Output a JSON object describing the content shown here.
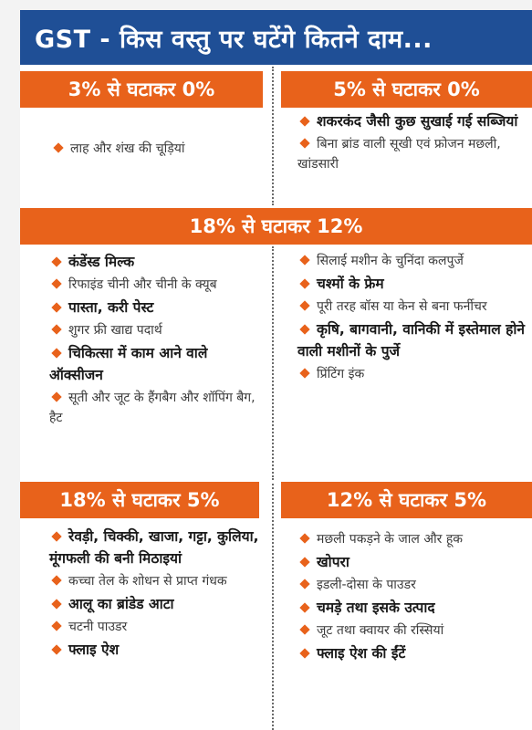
{
  "title": "GST - किस वस्तु पर घटेंगे कितने दाम...",
  "colors": {
    "title_bg": "#1f4f96",
    "band_bg": "#e8621b",
    "bullet": "#e8621b"
  },
  "sections": {
    "s1": {
      "heading": "3% से घटाकर 0%",
      "items": [
        {
          "text": "लाह और शंख की चूड़ियां",
          "bold": false
        }
      ]
    },
    "s2": {
      "heading": "5% से घटाकर 0%",
      "items": [
        {
          "text": "शकरकंद जैसी कुछ सुखाई गई सब्जियां",
          "bold": true
        },
        {
          "text": "बिना ब्रांड वाली सूखी एवं फ्रोजन मछली, खांडसारी",
          "bold": false
        }
      ]
    },
    "s3": {
      "heading": "18% से घटाकर 12%",
      "left_items": [
        {
          "text": "कंडेंस्ड मिल्क",
          "bold": true
        },
        {
          "text": "रिफाइंड चीनी और चीनी के क्यूब",
          "bold": false
        },
        {
          "text": "पास्ता, करी पेस्ट",
          "bold": true
        },
        {
          "text": "शुगर फ्री खाद्य पदार्थ",
          "bold": false
        },
        {
          "text": "चिकित्सा में काम आने वाले ऑक्सीजन",
          "bold": true
        },
        {
          "text": "सूती और जूट के हैंगबैग और शॉपिंग बैग, हैट",
          "bold": false
        }
      ],
      "right_items": [
        {
          "text": "सिलाई मशीन के चुनिंदा कलपुर्जे",
          "bold": false
        },
        {
          "text": "चश्मों के फ्रेम",
          "bold": true
        },
        {
          "text": "पूरी तरह बॉस या केन से बना फर्नीचर",
          "bold": false
        },
        {
          "text": "कृषि, बागवानी, वानिकी में इस्तेमाल होने वाली मशीनों के पुर्जे",
          "bold": true
        },
        {
          "text": "प्रिंटिंग इंक",
          "bold": false
        }
      ]
    },
    "s4": {
      "heading": "18% से घटाकर 5%",
      "items": [
        {
          "text": "रेवड़ी, चिक्की, खाजा, गट्टा, कुलिया, मूंगफली की बनी मिठाइयां",
          "bold": true
        },
        {
          "text": "कच्चा तेल के शोधन से प्राप्त गंधक",
          "bold": false
        },
        {
          "text": "आलू का ब्रांडेड आटा",
          "bold": true
        },
        {
          "text": "चटनी पाउडर",
          "bold": false
        },
        {
          "text": "फ्लाइ ऐश",
          "bold": true
        }
      ]
    },
    "s5": {
      "heading": "12% से घटाकर 5%",
      "items": [
        {
          "text": "मछली पकड़ने के जाल और हूक",
          "bold": false
        },
        {
          "text": "खोपरा",
          "bold": true
        },
        {
          "text": "इडली-दोसा के पाउडर",
          "bold": false
        },
        {
          "text": "चमड़े तथा इसके उत्पाद",
          "bold": true
        },
        {
          "text": "जूट तथा क्वायर की रस्सियां",
          "bold": false
        },
        {
          "text": "फ्लाइ ऐश की ईंटें",
          "bold": true
        }
      ]
    }
  }
}
